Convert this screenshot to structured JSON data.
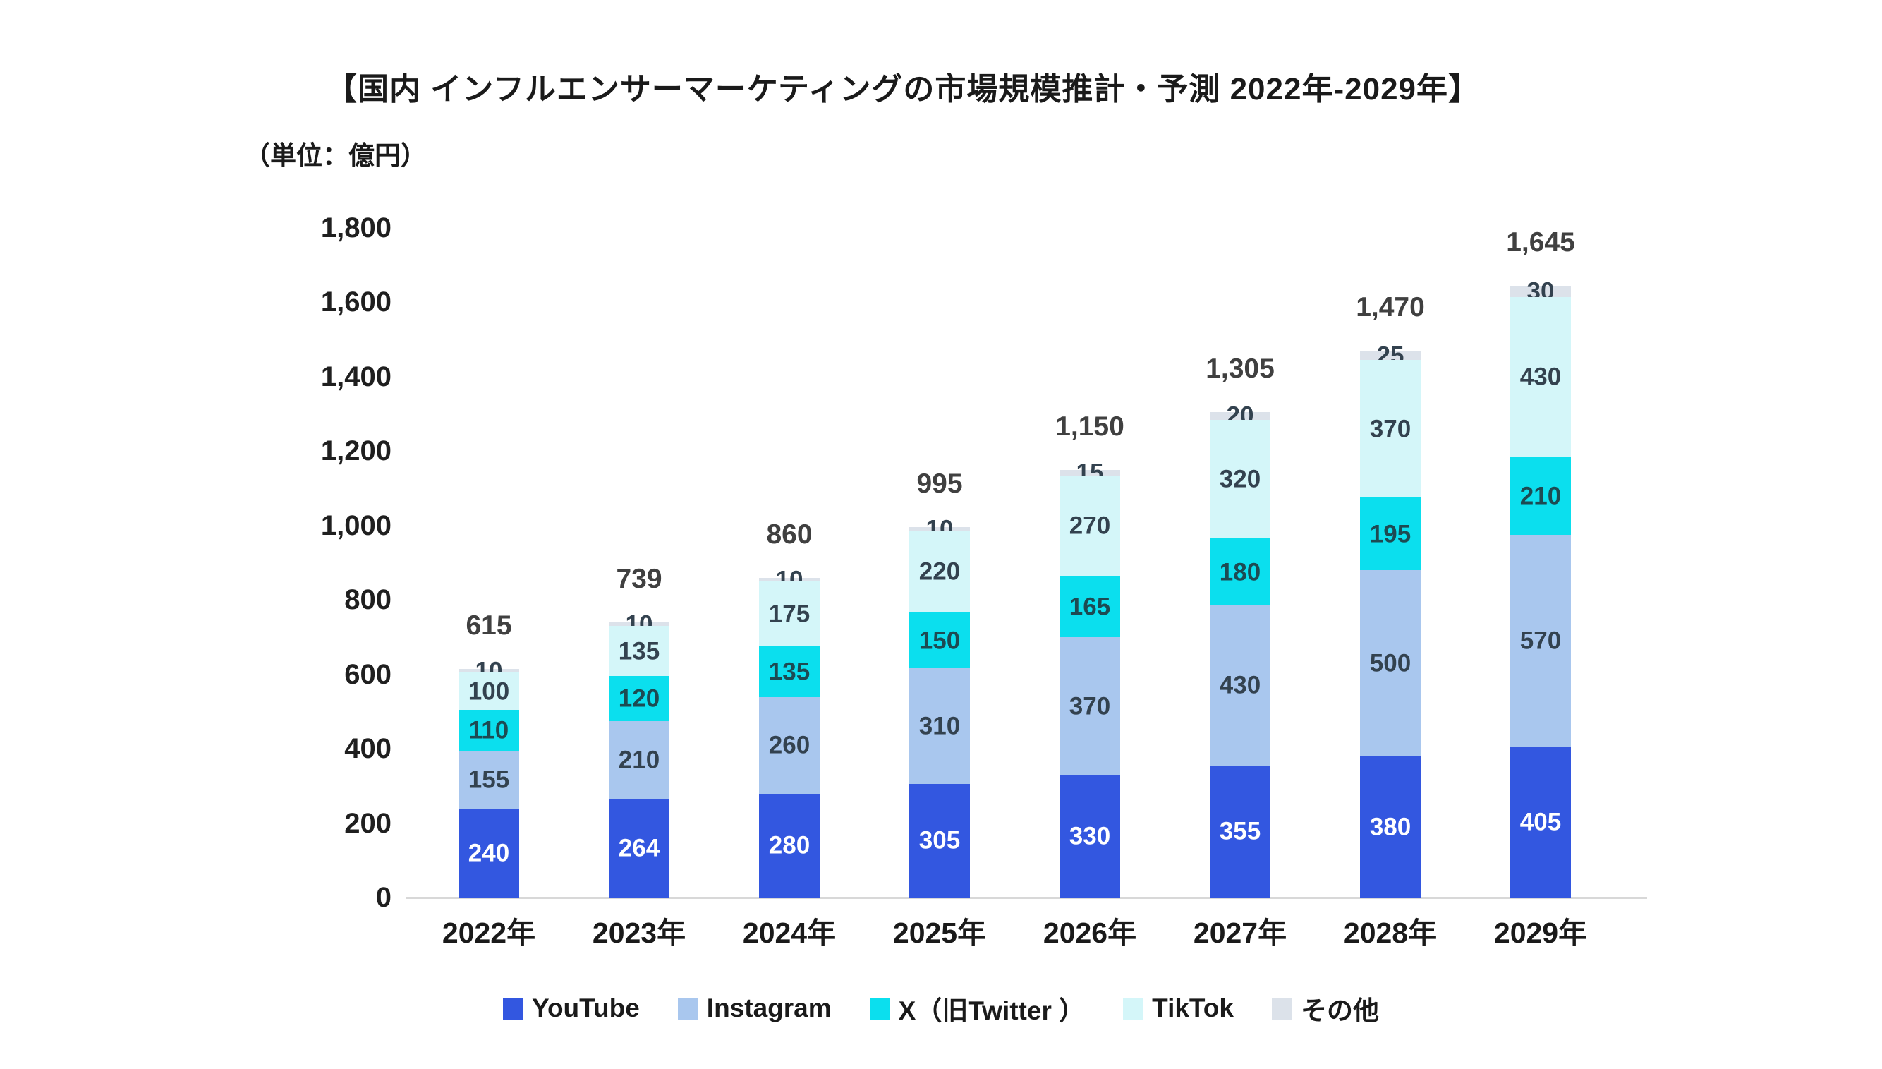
{
  "title": "【国内 インフルエンサーマーケティングの市場規模推計・予測 2022年-2029年】",
  "unit_label": "（単位：億円）",
  "chart_data": {
    "type": "bar",
    "stacked": true,
    "title": "【国内 インフルエンサーマーケティングの市場規模推計・予測 2022年-2029年】",
    "unit": "億円",
    "categories": [
      "2022年",
      "2023年",
      "2024年",
      "2025年",
      "2026年",
      "2027年",
      "2028年",
      "2029年"
    ],
    "series": [
      {
        "name": "YouTube",
        "color": "#3357e0",
        "label_color": "#ffffff",
        "values": [
          240,
          264,
          280,
          305,
          330,
          355,
          380,
          405
        ]
      },
      {
        "name": "Instagram",
        "color": "#a9c7ee",
        "label_color": "#33424f",
        "values": [
          155,
          210,
          260,
          310,
          370,
          430,
          500,
          570
        ]
      },
      {
        "name": "X（旧Twitter ）",
        "color": "#0bdfee",
        "label_color": "#1d4a52",
        "values": [
          110,
          120,
          135,
          150,
          165,
          180,
          195,
          210
        ]
      },
      {
        "name": "TikTok",
        "color": "#d4f6f9",
        "label_color": "#33424f",
        "values": [
          100,
          135,
          175,
          220,
          270,
          320,
          370,
          430
        ]
      },
      {
        "name": "その他",
        "color": "#dce2ea",
        "label_color": "#33424f",
        "values": [
          10,
          10,
          10,
          10,
          15,
          20,
          25,
          30
        ]
      }
    ],
    "total_labels": [
      "615",
      "739",
      "860",
      "995",
      "1,150",
      "1,305",
      "1,470",
      "1,645"
    ],
    "y_axis": {
      "min": 0,
      "max": 1800,
      "step": 200,
      "tick_labels": [
        "1,800",
        "1,600",
        "1,400",
        "1,200",
        "1,000",
        "800",
        "600",
        "400",
        "200",
        "0"
      ]
    },
    "legend_position": "bottom",
    "grid": false
  }
}
